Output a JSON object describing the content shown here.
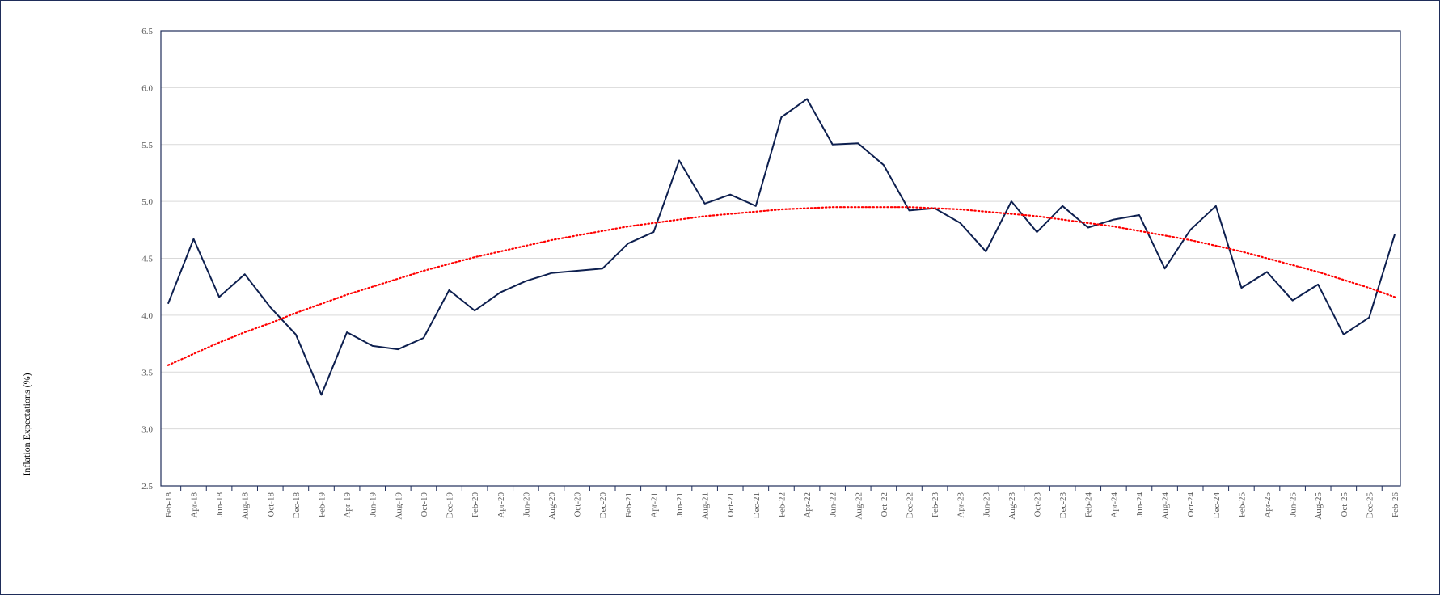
{
  "chart_data": {
    "type": "line",
    "ylabel": "Inflation Expectations (%)",
    "xlabel": "",
    "ylim": [
      2.5,
      6.5
    ],
    "yticks": [
      "2.5",
      "3.0",
      "3.5",
      "4.0",
      "4.5",
      "5.0",
      "5.5",
      "6.0",
      "6.5"
    ],
    "grid": true,
    "legend": "none",
    "categories": [
      "Feb-18",
      "Apr-18",
      "Jun-18",
      "Aug-18",
      "Oct-18",
      "Dec-18",
      "Feb-19",
      "Apr-19",
      "Jun-19",
      "Aug-19",
      "Oct-19",
      "Dec-19",
      "Feb-20",
      "Apr-20",
      "Jun-20",
      "Aug-20",
      "Oct-20",
      "Dec-20",
      "Feb-21",
      "Apr-21",
      "Jun-21",
      "Aug-21",
      "Oct-21",
      "Dec-21",
      "Feb-22",
      "Apr-22",
      "Jun-22",
      "Aug-22",
      "Oct-22",
      "Dec-22",
      "Feb-23",
      "Apr-23",
      "Jun-23",
      "Aug-23",
      "Oct-23",
      "Dec-23",
      "Feb-24",
      "Apr-24",
      "Jun-24",
      "Aug-24",
      "Oct-24",
      "Dec-24",
      "Feb-25",
      "Apr-25",
      "Jun-25",
      "Aug-25",
      "Oct-25",
      "Dec-25",
      "Feb-26"
    ],
    "series": [
      {
        "color": "#0d1f4f",
        "style": "solid",
        "values": [
          4.1,
          4.67,
          4.16,
          4.36,
          4.07,
          3.83,
          3.3,
          3.85,
          3.73,
          3.7,
          3.8,
          4.22,
          4.04,
          4.2,
          4.3,
          4.37,
          4.39,
          4.41,
          4.63,
          4.73,
          5.36,
          4.98,
          5.06,
          4.96,
          5.74,
          5.9,
          5.5,
          5.51,
          5.32,
          4.92,
          4.94,
          4.81,
          4.56,
          5.0,
          4.73,
          4.96,
          4.77,
          4.84,
          4.88,
          4.41,
          4.75,
          4.96,
          4.24,
          4.38,
          4.13,
          4.27,
          3.83,
          3.98,
          4.71
        ]
      },
      {
        "color": "#ff0000",
        "style": "dotted",
        "values": [
          3.56,
          3.66,
          3.76,
          3.85,
          3.93,
          4.02,
          4.1,
          4.18,
          4.25,
          4.32,
          4.39,
          4.45,
          4.51,
          4.56,
          4.61,
          4.66,
          4.7,
          4.74,
          4.78,
          4.81,
          4.84,
          4.87,
          4.89,
          4.91,
          4.93,
          4.94,
          4.95,
          4.95,
          4.95,
          4.95,
          4.94,
          4.93,
          4.91,
          4.89,
          4.87,
          4.84,
          4.81,
          4.78,
          4.74,
          4.7,
          4.66,
          4.61,
          4.56,
          4.5,
          4.44,
          4.38,
          4.31,
          4.24,
          4.16
        ]
      }
    ]
  }
}
